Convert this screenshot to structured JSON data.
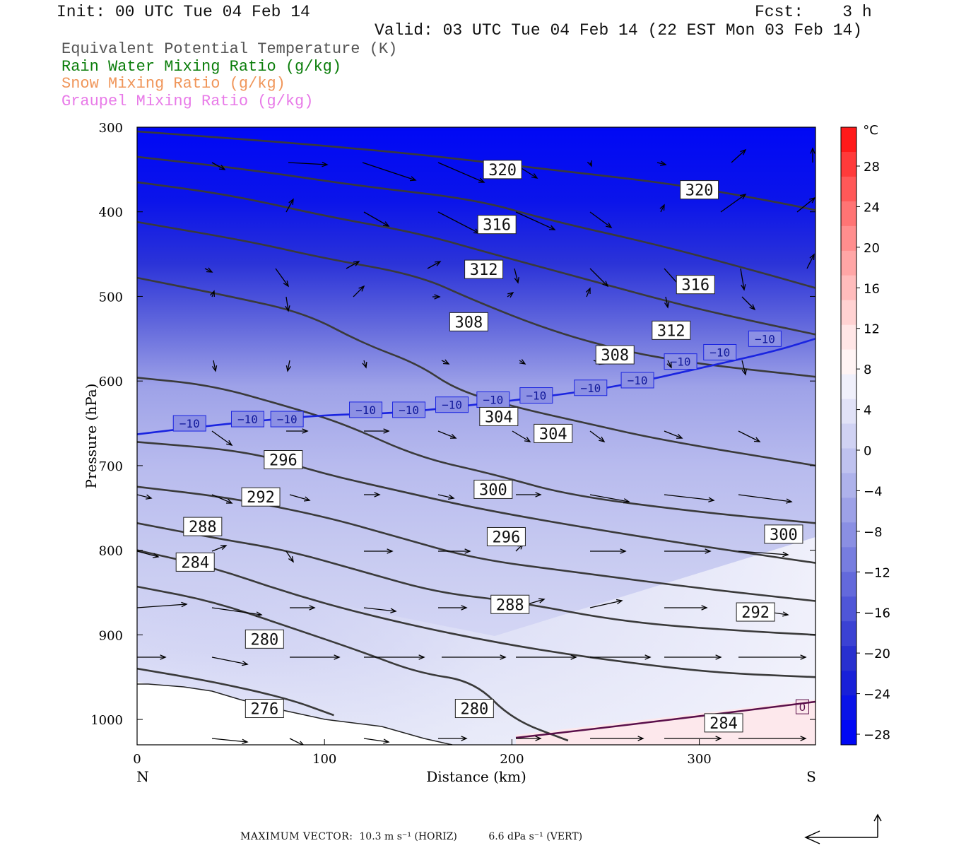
{
  "header": {
    "init": "Init: 00 UTC Tue 04 Feb 14",
    "fcst": "Fcst:    3 h",
    "valid": "Valid: 03 UTC Tue 04 Feb 14 (22 EST Mon 03 Feb 14)"
  },
  "legend": [
    {
      "text": "Equivalent Potential Temperature (K)",
      "color": "#555555"
    },
    {
      "text": "Rain Water Mixing Ratio (g/kg)",
      "color": "#0a7d0a"
    },
    {
      "text": "Snow Mixing Ratio (g/kg)",
      "color": "#f0965a"
    },
    {
      "text": "Graupel Mixing Ratio (g/kg)",
      "color": "#e87ae8"
    }
  ],
  "colorbar": {
    "unit": "°C",
    "labels": [
      "28",
      "24",
      "20",
      "16",
      "12",
      "8",
      "4",
      "0",
      "−4",
      "−8",
      "−12",
      "−16",
      "−20",
      "−24",
      "−28"
    ],
    "colors": [
      "#ff1a1a",
      "#ff3a3a",
      "#ff5858",
      "#ff7474",
      "#ff8e8e",
      "#ffa6a6",
      "#ffbcbc",
      "#ffd2d2",
      "#ffe6e6",
      "#fff4f4",
      "#f0f0fb",
      "#e1e2f7",
      "#d0d2f3",
      "#bfc2ef",
      "#aeb2eb",
      "#9da1e7",
      "#8a8fe3",
      "#777ddf",
      "#6369db",
      "#4f56d7",
      "#3b42d3",
      "#2830cf",
      "#1820d8",
      "#0a13e8",
      "#0008f5"
    ]
  },
  "footer": {
    "label": "MAXIMUM VECTOR:",
    "horiz": "10.3 m s⁻¹ (HORIZ)",
    "vert": "6.6 dPa s⁻¹ (VERT)"
  },
  "chart_data": {
    "type": "contour",
    "title": "",
    "xlabel": "Distance (km)",
    "ylabel": "Pressure (hPa)",
    "xlim": [
      0,
      362
    ],
    "ylim": [
      1030,
      300
    ],
    "x_ticks": [
      "0",
      "100",
      "200",
      "300"
    ],
    "x_tick_values": [
      0,
      100,
      200,
      300
    ],
    "x_end_labels": {
      "left": "N",
      "right": "S"
    },
    "y_ticks": [
      "300",
      "400",
      "500",
      "600",
      "700",
      "800",
      "900",
      "1000"
    ],
    "y_tick_values": [
      300,
      400,
      500,
      600,
      700,
      800,
      900,
      1000
    ],
    "theta_e_contours": [
      {
        "value": 320,
        "points": [
          [
            0,
            305
          ],
          [
            80,
            318
          ],
          [
            150,
            332
          ],
          [
            200,
            345
          ],
          [
            260,
            360
          ],
          [
            300,
            372
          ],
          [
            340,
            388
          ],
          [
            362,
            398
          ]
        ]
      },
      {
        "value": 316,
        "points": [
          [
            0,
            335
          ],
          [
            60,
            350
          ],
          [
            120,
            370
          ],
          [
            180,
            385
          ],
          [
            220,
            410
          ],
          [
            280,
            440
          ],
          [
            330,
            470
          ],
          [
            362,
            490
          ]
        ]
      },
      {
        "value": 312,
        "points": [
          [
            0,
            365
          ],
          [
            50,
            380
          ],
          [
            100,
            405
          ],
          [
            150,
            425
          ],
          [
            190,
            450
          ],
          [
            240,
            480
          ],
          [
            290,
            510
          ],
          [
            330,
            530
          ],
          [
            362,
            545
          ]
        ]
      },
      {
        "value": 308,
        "points": [
          [
            0,
            412
          ],
          [
            60,
            435
          ],
          [
            100,
            455
          ],
          [
            150,
            475
          ],
          [
            180,
            505
          ],
          [
            220,
            540
          ],
          [
            260,
            565
          ],
          [
            300,
            580
          ],
          [
            362,
            595
          ]
        ]
      },
      {
        "value": 304,
        "points": [
          [
            0,
            478
          ],
          [
            50,
            500
          ],
          [
            90,
            520
          ],
          [
            120,
            555
          ],
          [
            150,
            580
          ],
          [
            170,
            610
          ],
          [
            200,
            630
          ],
          [
            240,
            650
          ],
          [
            280,
            670
          ],
          [
            362,
            700
          ]
        ]
      },
      {
        "value": 300,
        "points": [
          [
            0,
            596
          ],
          [
            40,
            605
          ],
          [
            80,
            630
          ],
          [
            110,
            650
          ],
          [
            150,
            690
          ],
          [
            190,
            710
          ],
          [
            230,
            735
          ],
          [
            300,
            755
          ],
          [
            362,
            768
          ]
        ]
      },
      {
        "value": 296,
        "points": [
          [
            0,
            672
          ],
          [
            60,
            683
          ],
          [
            100,
            710
          ],
          [
            140,
            730
          ],
          [
            180,
            750
          ],
          [
            230,
            770
          ],
          [
            300,
            795
          ],
          [
            362,
            815
          ]
        ]
      },
      {
        "value": 292,
        "points": [
          [
            0,
            725
          ],
          [
            50,
            738
          ],
          [
            100,
            760
          ],
          [
            140,
            785
          ],
          [
            180,
            810
          ],
          [
            230,
            825
          ],
          [
            300,
            845
          ],
          [
            362,
            860
          ]
        ]
      },
      {
        "value": 288,
        "points": [
          [
            0,
            768
          ],
          [
            40,
            785
          ],
          [
            80,
            800
          ],
          [
            120,
            825
          ],
          [
            160,
            850
          ],
          [
            200,
            860
          ],
          [
            260,
            885
          ],
          [
            320,
            895
          ],
          [
            362,
            900
          ]
        ]
      },
      {
        "value": 284,
        "points": [
          [
            0,
            800
          ],
          [
            40,
            820
          ],
          [
            80,
            850
          ],
          [
            120,
            875
          ],
          [
            170,
            900
          ],
          [
            220,
            920
          ],
          [
            270,
            935
          ],
          [
            310,
            945
          ],
          [
            362,
            950
          ]
        ]
      },
      {
        "value": 280,
        "points": [
          [
            0,
            843
          ],
          [
            40,
            860
          ],
          [
            80,
            890
          ],
          [
            120,
            920
          ],
          [
            150,
            945
          ],
          [
            180,
            955
          ],
          [
            200,
            1000
          ],
          [
            230,
            1025
          ]
        ]
      },
      {
        "value": 276,
        "points": [
          [
            0,
            940
          ],
          [
            40,
            955
          ],
          [
            80,
            975
          ],
          [
            105,
            995
          ]
        ]
      }
    ],
    "contour_labels": [
      {
        "value": "320",
        "x": 195,
        "p": 350
      },
      {
        "value": "320",
        "x": 300,
        "p": 374
      },
      {
        "value": "316",
        "x": 192,
        "p": 415
      },
      {
        "value": "316",
        "x": 298,
        "p": 486
      },
      {
        "value": "312",
        "x": 185,
        "p": 468
      },
      {
        "value": "312",
        "x": 285,
        "p": 540
      },
      {
        "value": "308",
        "x": 177,
        "p": 530
      },
      {
        "value": "308",
        "x": 255,
        "p": 569
      },
      {
        "value": "304",
        "x": 193,
        "p": 642
      },
      {
        "value": "304",
        "x": 222,
        "p": 662
      },
      {
        "value": "300",
        "x": 190,
        "p": 728
      },
      {
        "value": "300",
        "x": 345,
        "p": 781
      },
      {
        "value": "296",
        "x": 78,
        "p": 693
      },
      {
        "value": "296",
        "x": 197,
        "p": 784
      },
      {
        "value": "292",
        "x": 66,
        "p": 737
      },
      {
        "value": "292",
        "x": 330,
        "p": 873
      },
      {
        "value": "288",
        "x": 35,
        "p": 772
      },
      {
        "value": "288",
        "x": 199,
        "p": 864
      },
      {
        "value": "284",
        "x": 31,
        "p": 814
      },
      {
        "value": "284",
        "x": 313,
        "p": 1004
      },
      {
        "value": "280",
        "x": 68,
        "p": 905
      },
      {
        "value": "280",
        "x": 180,
        "p": 987
      },
      {
        "value": "276",
        "x": 68,
        "p": 987
      }
    ],
    "isotherm_minus10": {
      "value": "−10",
      "points": [
        [
          0,
          663
        ],
        [
          30,
          655
        ],
        [
          60,
          648
        ],
        [
          100,
          640
        ],
        [
          140,
          638
        ],
        [
          180,
          628
        ],
        [
          220,
          618
        ],
        [
          260,
          605
        ],
        [
          300,
          585
        ],
        [
          340,
          565
        ],
        [
          362,
          550
        ]
      ],
      "labels": [
        [
          28,
          650
        ],
        [
          59,
          645
        ],
        [
          80,
          645
        ],
        [
          122,
          634
        ],
        [
          145,
          634
        ],
        [
          168,
          628
        ],
        [
          190,
          622
        ],
        [
          213,
          617
        ],
        [
          242,
          608
        ],
        [
          267,
          599
        ],
        [
          290,
          577
        ],
        [
          311,
          566
        ],
        [
          335,
          550
        ]
      ]
    },
    "zero_isotherm": {
      "value": "0",
      "label_x": 355,
      "label_p": 985
    },
    "wind_vectors": "shown as arrows; magnitude per MAXIMUM VECTOR reference"
  }
}
